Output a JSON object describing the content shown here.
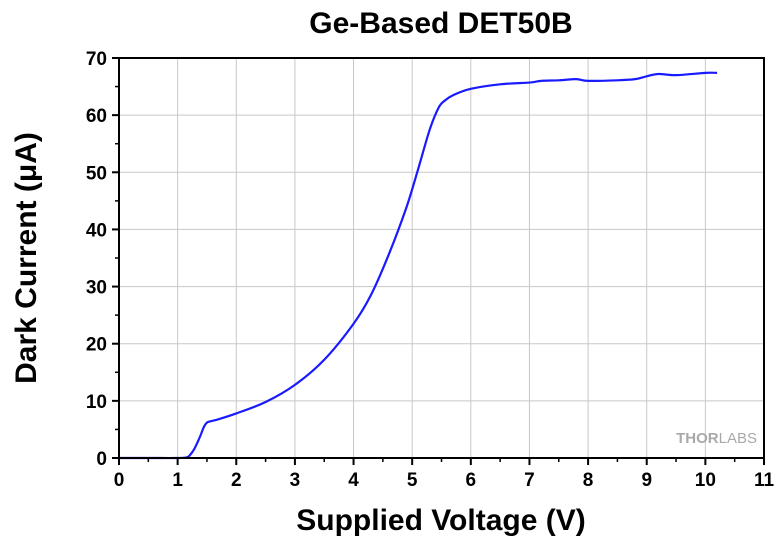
{
  "chart_data": {
    "type": "line",
    "title": "Ge-Based DET50B",
    "xlabel": "Supplied Voltage (V)",
    "ylabel": "Dark Current (μA)",
    "xlim": [
      0,
      11
    ],
    "ylim": [
      0,
      70
    ],
    "x_ticks": [
      0,
      1,
      2,
      3,
      4,
      5,
      6,
      7,
      8,
      9,
      10,
      11
    ],
    "y_ticks": [
      0,
      10,
      20,
      30,
      40,
      50,
      60,
      70
    ],
    "grid": true,
    "legend": "none",
    "series_color": "#1a1aff",
    "series": [
      {
        "x": [
          0,
          0.5,
          1.0,
          1.15,
          1.2,
          1.28,
          1.35,
          1.4,
          1.45,
          1.5,
          1.55,
          1.7,
          2.0,
          2.5,
          3.0,
          3.5,
          4.0,
          4.3,
          4.6,
          4.9,
          5.1,
          5.3,
          5.45,
          5.55,
          5.7,
          6.0,
          6.5,
          7.0,
          7.2,
          7.5,
          7.8,
          8.0,
          8.5,
          8.8,
          9.0,
          9.2,
          9.5,
          10.0,
          10.2
        ],
        "y": [
          0,
          0,
          0,
          0.1,
          0.4,
          1.5,
          3.0,
          4.2,
          5.5,
          6.2,
          6.4,
          6.8,
          7.8,
          9.8,
          12.8,
          17.2,
          23.5,
          28.6,
          35.6,
          43.8,
          50.5,
          57.5,
          61.3,
          62.5,
          63.5,
          64.6,
          65.4,
          65.7,
          66.0,
          66.1,
          66.3,
          66.0,
          66.1,
          66.3,
          66.8,
          67.2,
          67.0,
          67.4,
          67.4
        ]
      }
    ]
  },
  "watermark": {
    "part1": "THOR",
    "part2": "LABS"
  }
}
